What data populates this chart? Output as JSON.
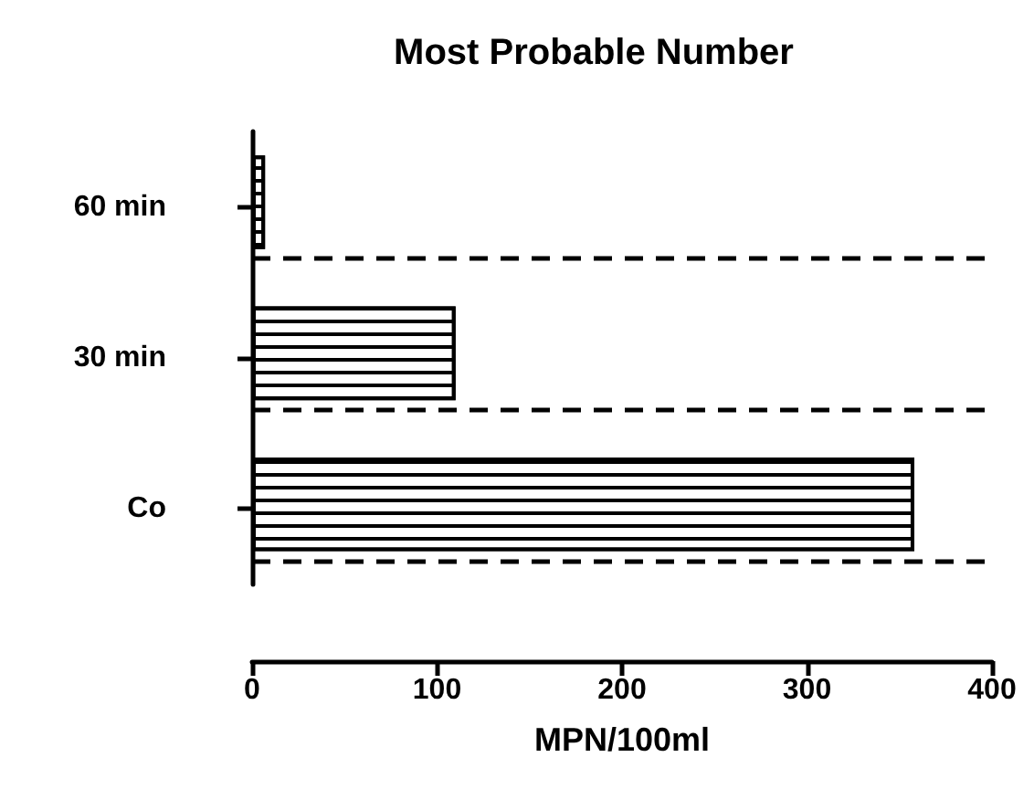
{
  "chart_data": {
    "type": "bar",
    "orientation": "horizontal",
    "title": "Most Probable Number",
    "xlabel": "MPN/100ml",
    "categories": [
      "60 min",
      "30 min",
      "Co"
    ],
    "values": [
      7,
      110,
      358
    ],
    "color": "#ffffff",
    "xlim": [
      0,
      400
    ],
    "xticks": [
      0,
      100,
      200,
      300,
      400
    ],
    "grid": "y",
    "line_style": "dashed"
  }
}
